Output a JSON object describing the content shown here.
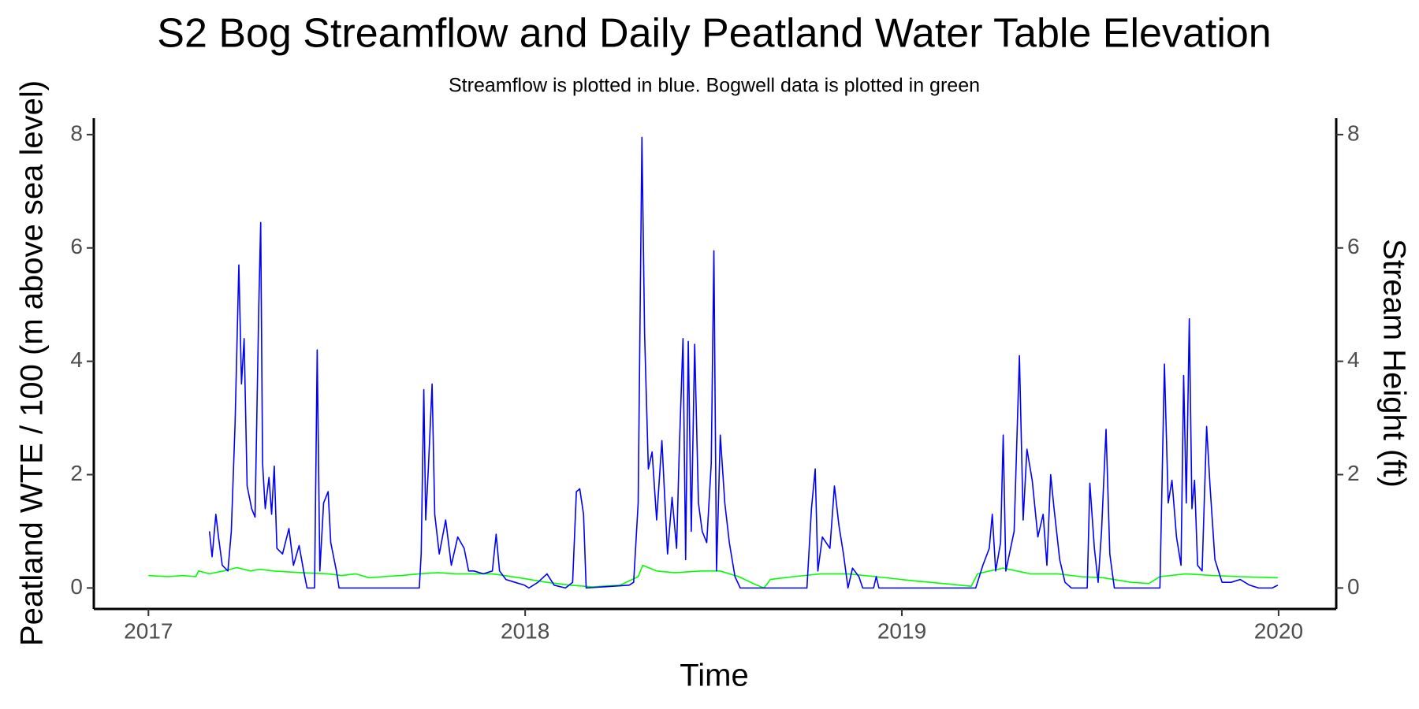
{
  "chart_data": {
    "type": "line",
    "title": "S2 Bog Streamflow and Daily Peatland Water Table Elevation",
    "subtitle": "Streamflow is plotted in blue. Bogwell data is plotted in green",
    "x_label": "Time",
    "y_label": "Peatland WTE / 100 (m above sea level)",
    "y2_label": "Stream Height (ft)",
    "xlim": [
      2016.855,
      2020.153
    ],
    "xticks": [
      2017,
      2018,
      2019,
      2020
    ],
    "ylim": [
      -0.37,
      8.29
    ],
    "yticks": [
      0,
      2,
      4,
      6,
      8
    ],
    "y2lim": [
      -0.37,
      8.29
    ],
    "y2ticks": [
      0,
      2,
      4,
      6,
      8
    ],
    "grid": false,
    "series": [
      {
        "color": "#0000ff",
        "axis": "y2",
        "x": [
          2017.162,
          2017.169,
          2017.179,
          2017.186,
          2017.196,
          2017.211,
          2017.22,
          2017.23,
          2017.24,
          2017.247,
          2017.254,
          2017.262,
          2017.274,
          2017.283,
          2017.293,
          2017.298,
          2017.303,
          2017.31,
          2017.32,
          2017.327,
          2017.334,
          2017.341,
          2017.356,
          2017.373,
          2017.385,
          2017.4,
          2017.412,
          2017.421,
          2017.441,
          2017.448,
          2017.455,
          2017.465,
          2017.477,
          2017.484,
          2017.499,
          2017.506,
          2017.719,
          2017.724,
          2017.731,
          2017.736,
          2017.743,
          2017.753,
          2017.76,
          2017.772,
          2017.789,
          2017.804,
          2017.821,
          2017.838,
          2017.85,
          2017.864,
          2017.889,
          2017.913,
          2017.923,
          2017.932,
          2017.949,
          2017.973,
          2017.998,
          2018.01,
          2018.034,
          2018.058,
          2018.077,
          2018.107,
          2018.126,
          2018.136,
          2018.145,
          2018.155,
          2018.162,
          2018.276,
          2018.288,
          2018.3,
          2018.31,
          2018.317,
          2018.327,
          2018.337,
          2018.349,
          2018.363,
          2018.378,
          2018.39,
          2018.402,
          2018.409,
          2018.419,
          2018.426,
          2018.433,
          2018.441,
          2018.45,
          2018.46,
          2018.47,
          2018.482,
          2018.494,
          2018.501,
          2018.508,
          2018.518,
          2018.53,
          2018.542,
          2018.557,
          2018.571,
          2018.748,
          2018.76,
          2018.77,
          2018.777,
          2018.789,
          2018.809,
          2018.821,
          2018.833,
          2018.845,
          2018.857,
          2018.869,
          2018.886,
          2018.896,
          2018.925,
          2018.932,
          2018.939,
          2019.196,
          2019.215,
          2019.232,
          2019.24,
          2019.249,
          2019.262,
          2019.269,
          2019.276,
          2019.298,
          2019.312,
          2019.322,
          2019.332,
          2019.346,
          2019.361,
          2019.375,
          2019.385,
          2019.395,
          2019.404,
          2019.419,
          2019.433,
          2019.45,
          2019.492,
          2019.499,
          2019.511,
          2019.521,
          2019.53,
          2019.542,
          2019.552,
          2019.564,
          2019.685,
          2019.697,
          2019.707,
          2019.717,
          2019.729,
          2019.741,
          2019.748,
          2019.755,
          2019.763,
          2019.77,
          2019.777,
          2019.785,
          2019.797,
          2019.809,
          2019.818,
          2019.831,
          2019.85,
          2019.874,
          2019.898,
          2019.923,
          2019.947,
          2019.983,
          2019.998
        ],
        "values": [
          1.0,
          0.55,
          1.3,
          0.9,
          0.4,
          0.3,
          1.0,
          2.9,
          5.7,
          3.6,
          4.4,
          1.8,
          1.4,
          1.25,
          5.0,
          6.45,
          2.2,
          1.4,
          1.95,
          1.3,
          2.15,
          0.7,
          0.6,
          1.05,
          0.4,
          0.75,
          0.3,
          0,
          0,
          4.2,
          0.3,
          1.5,
          1.7,
          0.8,
          0.3,
          0,
          0,
          0.6,
          3.5,
          1.2,
          2.1,
          3.6,
          1.3,
          0.6,
          1.2,
          0.4,
          0.9,
          0.7,
          0.3,
          0.3,
          0.25,
          0.3,
          0.95,
          0.3,
          0.15,
          0.1,
          0.05,
          0,
          0.1,
          0.25,
          0.05,
          0,
          0.1,
          1.7,
          1.75,
          1.3,
          0,
          0.05,
          0.1,
          1.5,
          7.95,
          4.5,
          2.1,
          2.4,
          1.2,
          2.6,
          0.6,
          1.6,
          0.7,
          2.4,
          4.4,
          0.5,
          4.35,
          1.0,
          4.3,
          1.5,
          1.0,
          0.8,
          2.2,
          5.95,
          0.3,
          2.7,
          1.5,
          0.8,
          0.2,
          0,
          0,
          1.4,
          2.1,
          0.3,
          0.9,
          0.7,
          1.8,
          1.1,
          0.6,
          0,
          0.35,
          0.2,
          0,
          0,
          0.2,
          0,
          0,
          0.4,
          0.7,
          1.3,
          0.3,
          0.8,
          2.7,
          0.3,
          1.0,
          4.1,
          1.2,
          2.45,
          1.9,
          0.9,
          1.3,
          0.4,
          2.0,
          1.4,
          0.5,
          0.1,
          0,
          0,
          1.85,
          0.7,
          0.1,
          1.0,
          2.8,
          0.6,
          0,
          0,
          3.95,
          1.5,
          1.9,
          0.9,
          0.4,
          3.75,
          1.5,
          4.75,
          1.4,
          1.9,
          0.4,
          0.3,
          2.85,
          1.8,
          0.5,
          0.1,
          0.1,
          0.15,
          0.05,
          0,
          0,
          0.05
        ]
      },
      {
        "color": "#00ff00",
        "x": [
          2017.0,
          2017.053,
          2017.09,
          2017.126,
          2017.133,
          2017.162,
          2017.199,
          2017.235,
          2017.271,
          2017.295,
          2017.332,
          2017.404,
          2017.477,
          2017.513,
          2017.55,
          2017.586,
          2017.622,
          2017.671,
          2017.719,
          2017.768,
          2017.816,
          2017.913,
          2017.985,
          2018.058,
          2018.119,
          2018.179,
          2018.252,
          2018.3,
          2018.312,
          2018.349,
          2018.397,
          2018.47,
          2018.518,
          2018.567,
          2018.615,
          2018.634,
          2018.651,
          2018.712,
          2018.785,
          2018.857,
          2018.93,
          2019.027,
          2019.123,
          2019.184,
          2019.201,
          2019.232,
          2019.269,
          2019.305,
          2019.341,
          2019.414,
          2019.475,
          2019.535,
          2019.608,
          2019.656,
          2019.685,
          2019.753,
          2019.826,
          2019.898,
          2019.998
        ],
        "values": [
          0.22,
          0.2,
          0.22,
          0.2,
          0.3,
          0.25,
          0.3,
          0.36,
          0.3,
          0.33,
          0.3,
          0.27,
          0.25,
          0.22,
          0.25,
          0.18,
          0.2,
          0.22,
          0.25,
          0.27,
          0.25,
          0.25,
          0.18,
          0.1,
          0.05,
          0.02,
          0.05,
          0.2,
          0.4,
          0.3,
          0.27,
          0.3,
          0.3,
          0.2,
          0.05,
          0,
          0.15,
          0.2,
          0.25,
          0.25,
          0.2,
          0.13,
          0.07,
          0.03,
          0.25,
          0.3,
          0.35,
          0.3,
          0.25,
          0.25,
          0.2,
          0.18,
          0.1,
          0.08,
          0.2,
          0.25,
          0.22,
          0.2,
          0.18
        ]
      }
    ]
  }
}
